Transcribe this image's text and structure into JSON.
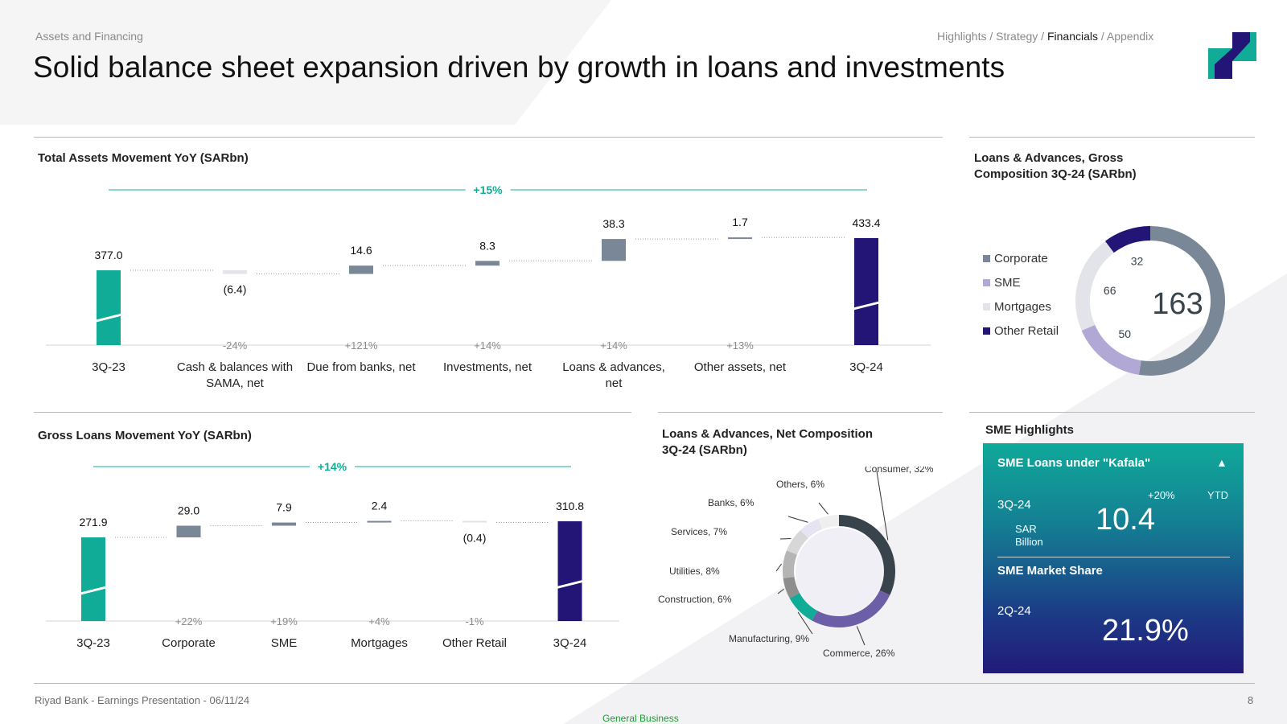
{
  "header": {
    "section": "Assets and Financing",
    "title": "Solid balance sheet expansion driven by growth in loans and investments",
    "nav": [
      {
        "label": "Highlights /",
        "current": false
      },
      {
        "label": "Strategy /",
        "current": false
      },
      {
        "label": "Financials",
        "current": true
      },
      {
        "label": "/ Appendix",
        "current": false
      }
    ]
  },
  "colors": {
    "teal": "#10ac98",
    "navy": "#221575",
    "slate": "#7a8797",
    "light_gray": "#e2e4ea",
    "lavender": "#b1a8d6",
    "dark_slate": "#38434b",
    "purple": "#6c5fa8"
  },
  "icons": {
    "logo": "riyad-bank-logo"
  },
  "chart_data": [
    {
      "type": "bar",
      "subtype": "waterfall",
      "title": "Total Assets Movement YoY (SARbn)",
      "categories": [
        "3Q-23",
        "Cash & balances with SAMA, net",
        "Due from banks, net",
        "Investments, net",
        "Loans & advances, net",
        "Other assets, net",
        "3Q-24"
      ],
      "values": [
        377.0,
        -6.4,
        14.6,
        8.3,
        38.3,
        1.7,
        433.4
      ],
      "value_labels": [
        "377.0",
        "(6.4)",
        "14.6",
        "8.3",
        "38.3",
        "1.7",
        "433.4"
      ],
      "growth_labels": [
        "",
        "-24%",
        "+121%",
        "+14%",
        "+14%",
        "+13%",
        ""
      ],
      "overall_growth": "+15%"
    },
    {
      "type": "bar",
      "subtype": "waterfall",
      "title": "Gross Loans Movement YoY (SARbn)",
      "categories": [
        "3Q-23",
        "Corporate",
        "SME",
        "Mortgages",
        "Other Retail",
        "3Q-24"
      ],
      "values": [
        271.9,
        29.0,
        7.9,
        2.4,
        -0.4,
        310.8
      ],
      "value_labels": [
        "271.9",
        "29.0",
        "7.9",
        "2.4",
        "(0.4)",
        "310.8"
      ],
      "growth_labels": [
        "",
        "+22%",
        "+19%",
        "+4%",
        "-1%",
        ""
      ],
      "overall_growth": "+14%"
    },
    {
      "type": "pie",
      "subtype": "donut",
      "title": "Loans & Advances, Gross Composition 3Q-24 (SARbn)",
      "center_label": "163",
      "legend_position": "left",
      "series": [
        {
          "name": "Corporate",
          "value": 163,
          "color": "#7a8797"
        },
        {
          "name": "SME",
          "value": 50,
          "color": "#b1a8d6"
        },
        {
          "name": "Mortgages",
          "value": 66,
          "color": "#e2e4ea"
        },
        {
          "name": "Other Retail",
          "value": 32,
          "color": "#221575"
        }
      ]
    },
    {
      "type": "pie",
      "subtype": "donut",
      "title": "Loans & Advances, Net Composition 3Q-24 (SARbn)",
      "slices": [
        {
          "label": "Consumer, 32%",
          "value": 32,
          "color": "#38434b"
        },
        {
          "label": "Commerce, 26%",
          "value": 26,
          "color": "#6c5fa8"
        },
        {
          "label": "Manufacturing, 9%",
          "value": 9,
          "color": "#10ac98"
        },
        {
          "label": "Construction, 6%",
          "value": 6,
          "color": "#8e8e8e"
        },
        {
          "label": "Utilities, 8%",
          "value": 8,
          "color": "#b5b5b5"
        },
        {
          "label": "Services, 7%",
          "value": 7,
          "color": "#d7d7d7"
        },
        {
          "label": "Banks, 6%",
          "value": 6,
          "color": "#e6e3f2"
        },
        {
          "label": "Others, 6%",
          "value": 6,
          "color": "#efefef"
        }
      ]
    }
  ],
  "sme": {
    "heading": "SME Highlights",
    "kafala_title": "SME Loans under \"Kafala\"",
    "period1": "3Q-24",
    "change": "+20%",
    "change_basis": "YTD",
    "unit": "SAR\nBillion",
    "value1": "10.4",
    "share_title": "SME Market Share",
    "period2": "2Q-24",
    "value2": "21.9%"
  },
  "footer": {
    "left": "Riyad Bank - Earnings Presentation - 06/11/24",
    "page": "8",
    "classification": "General Business"
  }
}
